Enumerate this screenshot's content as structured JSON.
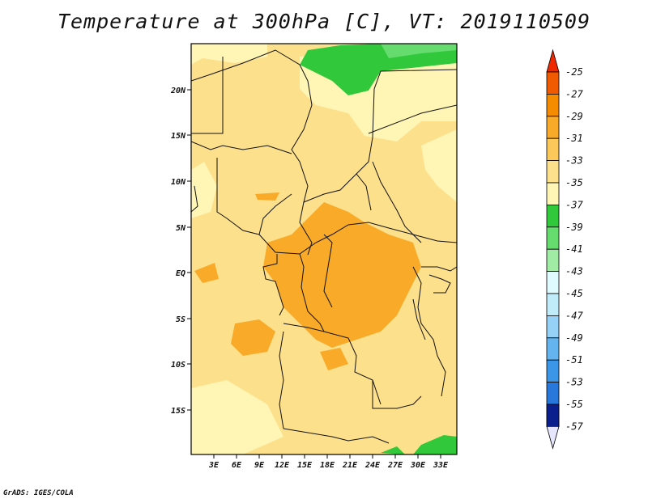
{
  "title": "Temperature at 300hPa [C], VT: 2019110509",
  "footer": "GrADS: IGES/COLA",
  "map": {
    "lon_ticks": [
      "3E",
      "6E",
      "9E",
      "12E",
      "15E",
      "18E",
      "21E",
      "24E",
      "27E",
      "30E",
      "33E"
    ],
    "lat_ticks": [
      "20N",
      "15N",
      "10N",
      "5N",
      "EQ",
      "5S",
      "10S",
      "15S"
    ]
  },
  "colorbar": {
    "labels": [
      "-25",
      "-27",
      "-29",
      "-31",
      "-33",
      "-35",
      "-37",
      "-39",
      "-41",
      "-43",
      "-45",
      "-47",
      "-49",
      "-51",
      "-53",
      "-55",
      "-57"
    ],
    "colors": [
      "#f05a00",
      "#f58c00",
      "#f8aa28",
      "#fcc85a",
      "#fde08c",
      "#fff5b4",
      "#32c83c",
      "#66dc6e",
      "#a0eca4",
      "#e0fbff",
      "#c0ecfa",
      "#96d2f8",
      "#64b4f0",
      "#3c96e8",
      "#2878dc",
      "#145abe",
      "#0a1e8c"
    ],
    "top_arrow_color": "#f02800",
    "bottom_arrow_color": "#e6e6ff"
  }
}
